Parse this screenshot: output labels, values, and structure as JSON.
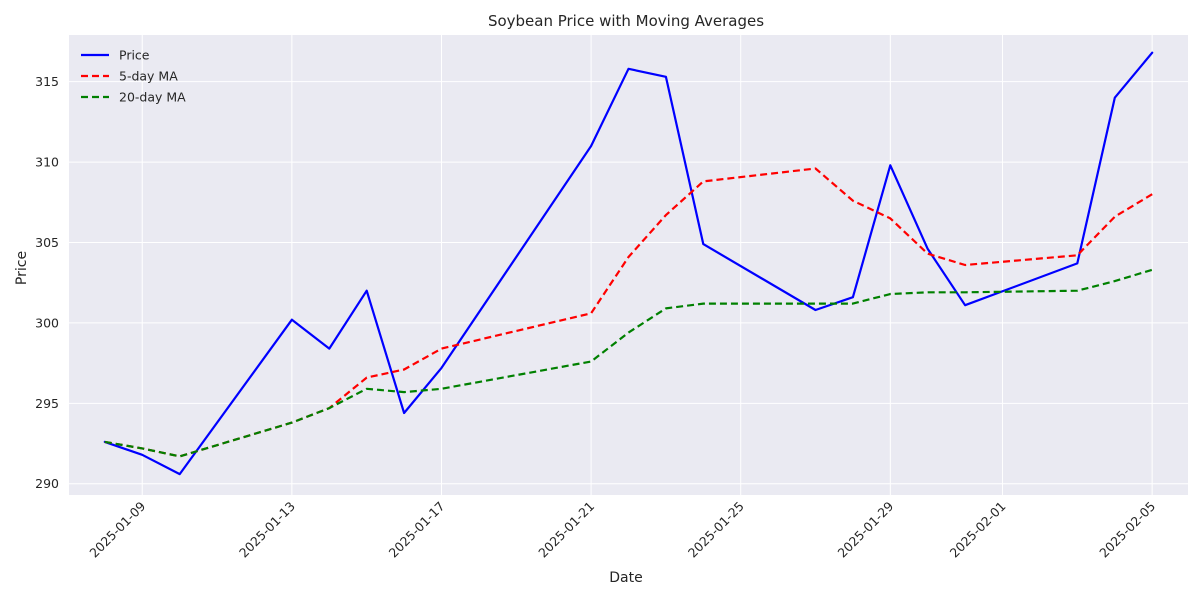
{
  "chart_data": {
    "type": "line",
    "title": "Soybean Price with Moving Averages",
    "xlabel": "Date",
    "ylabel": "Price",
    "x": [
      "2025-01-08",
      "2025-01-09",
      "2025-01-10",
      "2025-01-13",
      "2025-01-14",
      "2025-01-15",
      "2025-01-16",
      "2025-01-17",
      "2025-01-21",
      "2025-01-22",
      "2025-01-23",
      "2025-01-24",
      "2025-01-27",
      "2025-01-28",
      "2025-01-29",
      "2025-01-30",
      "2025-01-31",
      "2025-02-03",
      "2025-02-04",
      "2025-02-05"
    ],
    "series": [
      {
        "name": "Price",
        "color": "#0000ff",
        "style": "solid",
        "values": [
          292.6,
          291.8,
          290.6,
          300.2,
          298.4,
          302.0,
          294.4,
          297.2,
          311.0,
          315.8,
          315.3,
          304.9,
          300.8,
          301.6,
          309.8,
          304.6,
          301.1,
          303.7,
          314.0,
          316.8
        ]
      },
      {
        "name": "5-day MA",
        "color": "#ff0000",
        "style": "dashed",
        "values": [
          292.6,
          292.2,
          291.7,
          293.8,
          294.7,
          296.6,
          297.1,
          298.4,
          300.6,
          304.1,
          306.7,
          308.8,
          309.6,
          307.6,
          306.5,
          304.3,
          303.6,
          304.2,
          306.6,
          308.0
        ]
      },
      {
        "name": "20-day MA",
        "color": "#008000",
        "style": "dashed",
        "values": [
          292.6,
          292.2,
          291.7,
          293.8,
          294.7,
          295.9,
          295.7,
          295.9,
          297.6,
          299.4,
          300.9,
          301.2,
          301.2,
          301.2,
          301.8,
          301.9,
          301.9,
          302.0,
          302.6,
          303.3
        ]
      }
    ],
    "xticks": [
      "2025-01-09",
      "2025-01-13",
      "2025-01-17",
      "2025-01-21",
      "2025-01-25",
      "2025-01-29",
      "2025-02-01",
      "2025-02-05"
    ],
    "yticks": [
      290,
      295,
      300,
      305,
      310,
      315
    ],
    "xlim": [
      "2025-01-07T01:00",
      "2025-02-05T23:00"
    ],
    "ylim": [
      289.3,
      317.9
    ],
    "grid": true,
    "legend": "top-left",
    "background": "#eaeaf2"
  }
}
